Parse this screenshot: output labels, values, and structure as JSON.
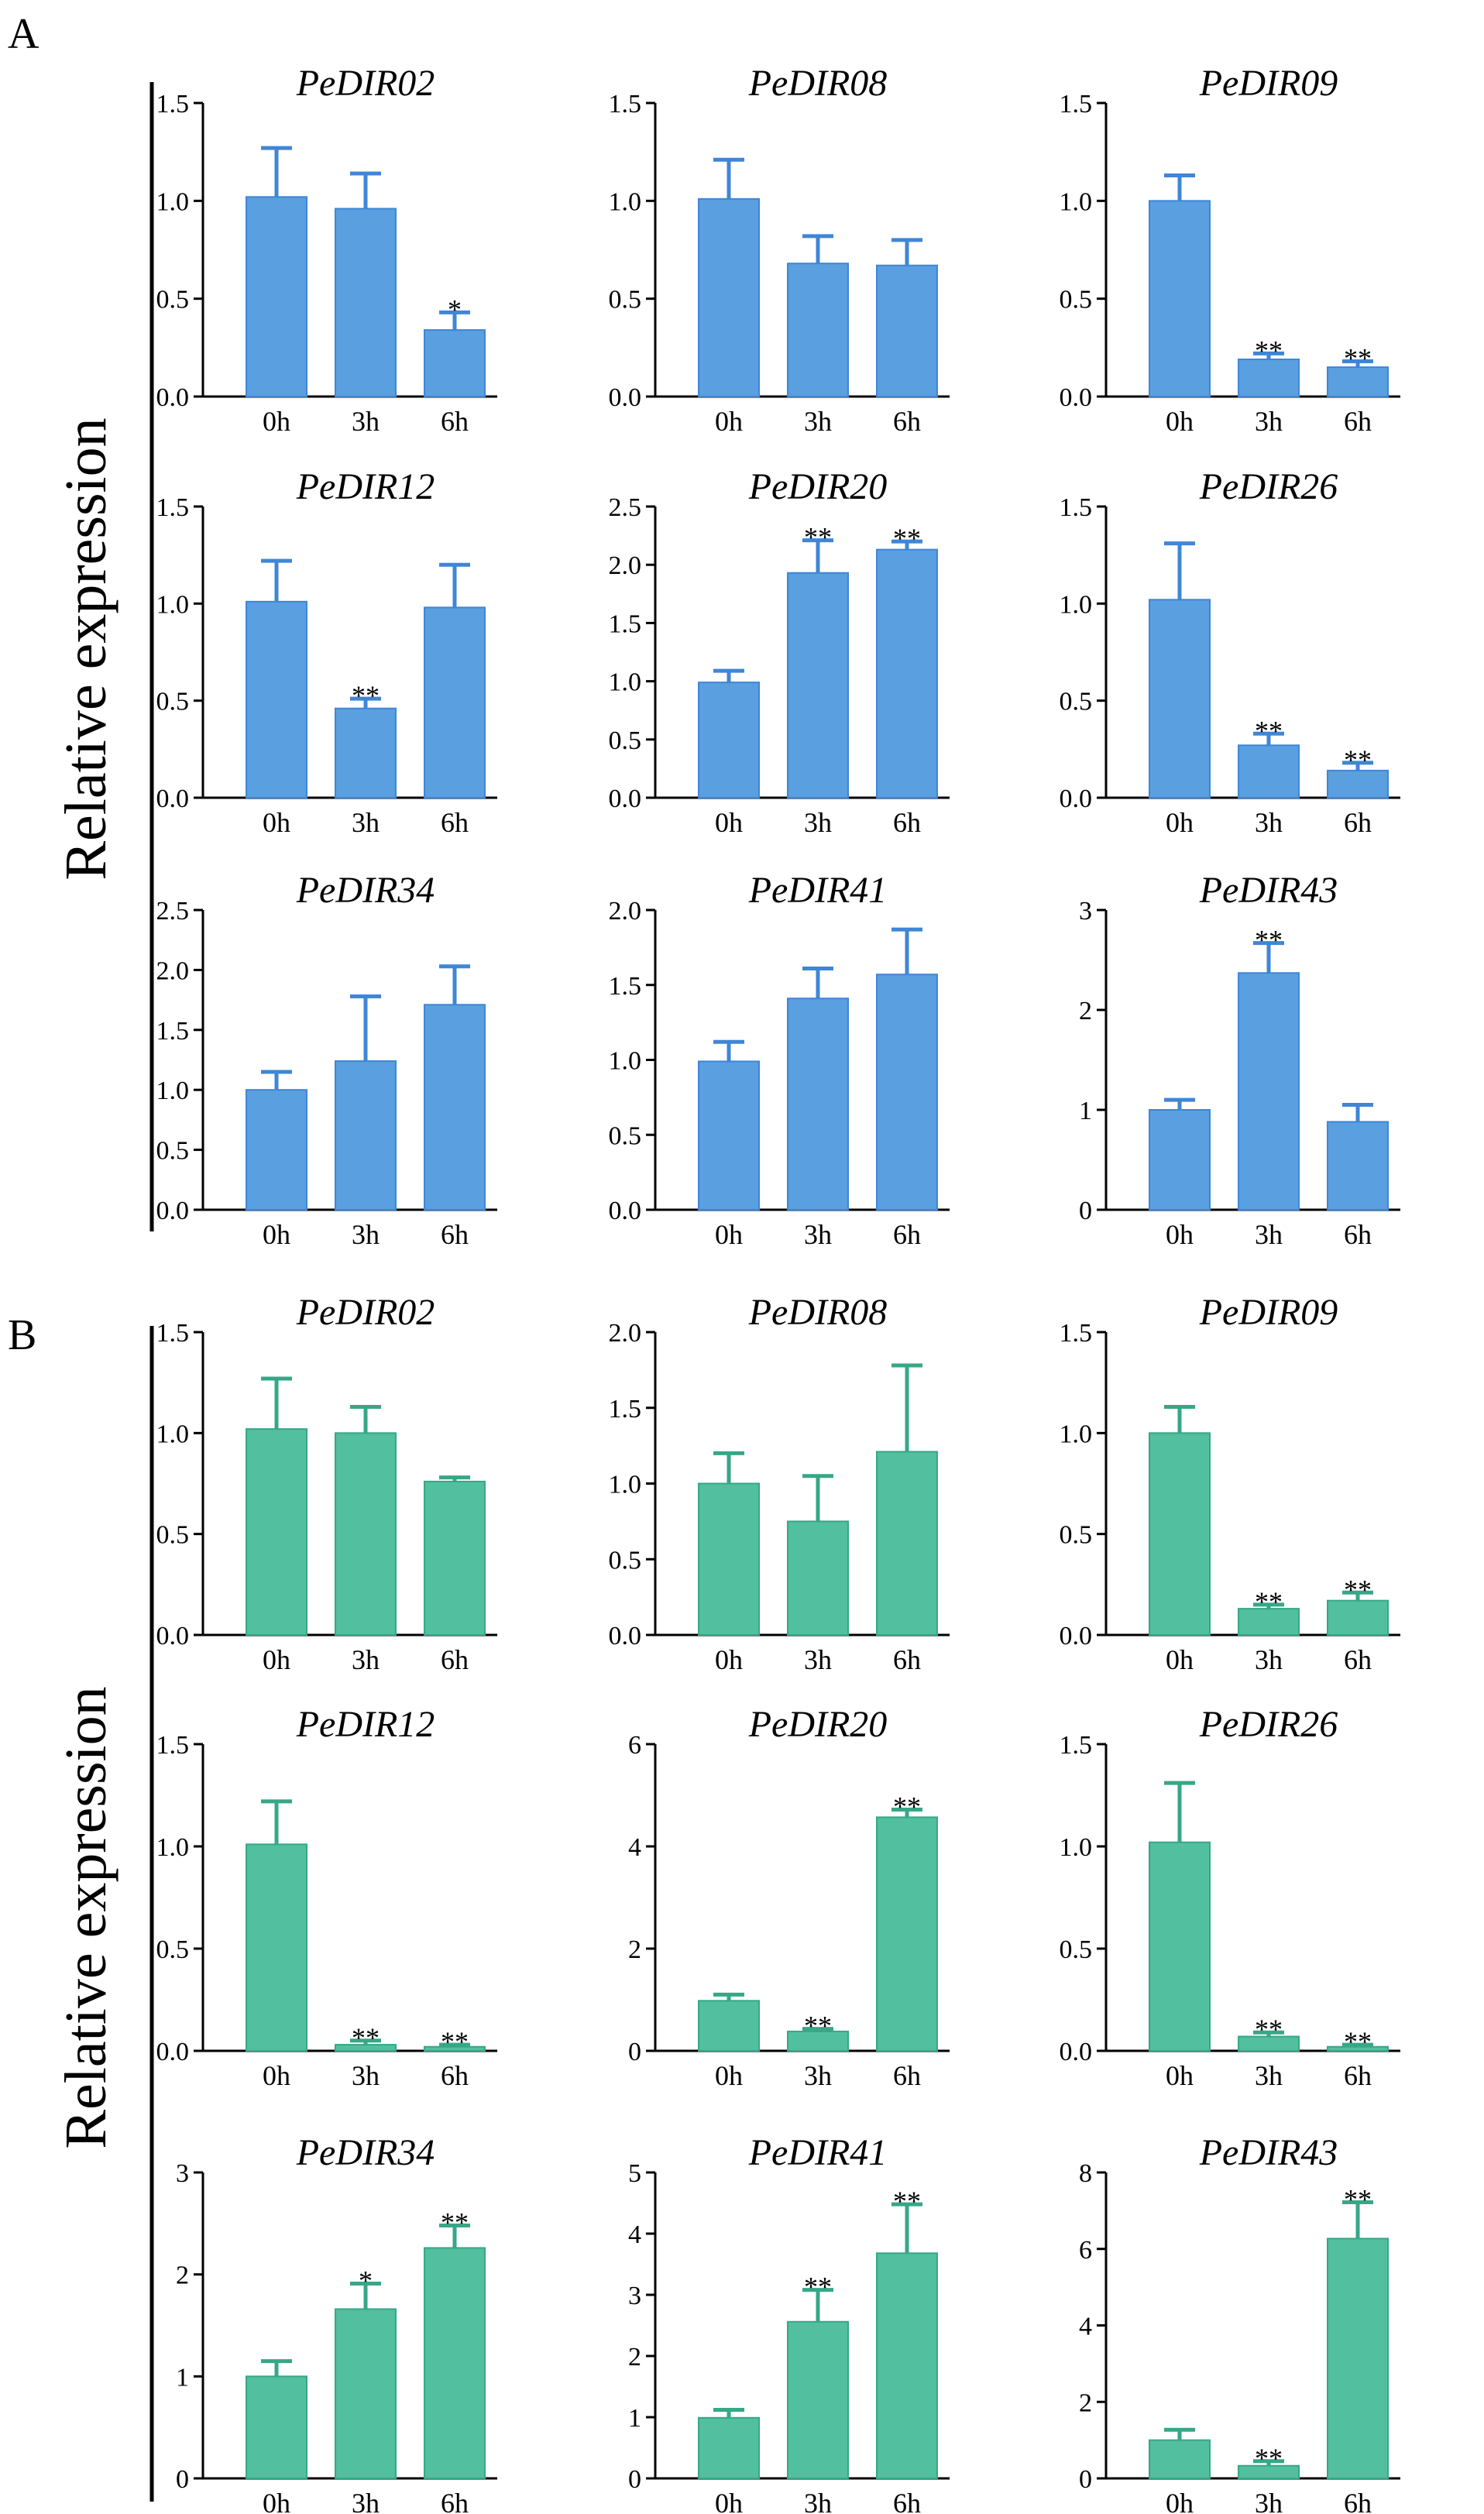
{
  "figure": {
    "panel_a_label": "A",
    "panel_b_label": "B",
    "ylabel": "Relative expression",
    "colors": {
      "panel_a": "#5a9fe0",
      "panel_a_stroke": "#3f86d6",
      "panel_b": "#52bf9f",
      "panel_b_stroke": "#36a787",
      "axis": "#000000"
    }
  },
  "chart_data": [
    {
      "panel": "A",
      "type": "bar",
      "title": "PeDIR02",
      "categories": [
        "0h",
        "3h",
        "6h"
      ],
      "values": [
        1.02,
        0.96,
        0.34
      ],
      "errors": [
        0.25,
        0.18,
        0.09
      ],
      "significance": [
        "",
        "",
        "*"
      ],
      "ylim": [
        0,
        1.5
      ],
      "yticks": [
        "0.0",
        "0.5",
        "1.0",
        "1.5"
      ],
      "ylabel": "Relative expression"
    },
    {
      "panel": "A",
      "type": "bar",
      "title": "PeDIR08",
      "categories": [
        "0h",
        "3h",
        "6h"
      ],
      "values": [
        1.01,
        0.68,
        0.67
      ],
      "errors": [
        0.2,
        0.14,
        0.13
      ],
      "significance": [
        "",
        "",
        ""
      ],
      "ylim": [
        0,
        1.5
      ],
      "yticks": [
        "0.0",
        "0.5",
        "1.0",
        "1.5"
      ],
      "ylabel": "Relative expression"
    },
    {
      "panel": "A",
      "type": "bar",
      "title": "PeDIR09",
      "categories": [
        "0h",
        "3h",
        "6h"
      ],
      "values": [
        1.0,
        0.19,
        0.15
      ],
      "errors": [
        0.13,
        0.03,
        0.03
      ],
      "significance": [
        "",
        "**",
        "**"
      ],
      "ylim": [
        0,
        1.5
      ],
      "yticks": [
        "0.0",
        "0.5",
        "1.0",
        "1.5"
      ],
      "ylabel": "Relative expression"
    },
    {
      "panel": "A",
      "type": "bar",
      "title": "PeDIR12",
      "categories": [
        "0h",
        "3h",
        "6h"
      ],
      "values": [
        1.01,
        0.46,
        0.98
      ],
      "errors": [
        0.21,
        0.05,
        0.22
      ],
      "significance": [
        "",
        "**",
        ""
      ],
      "ylim": [
        0,
        1.5
      ],
      "yticks": [
        "0.0",
        "0.5",
        "1.0",
        "1.5"
      ],
      "ylabel": "Relative expression"
    },
    {
      "panel": "A",
      "type": "bar",
      "title": "PeDIR20",
      "categories": [
        "0h",
        "3h",
        "6h"
      ],
      "values": [
        0.99,
        1.93,
        2.13
      ],
      "errors": [
        0.1,
        0.28,
        0.07
      ],
      "significance": [
        "",
        "**",
        "**"
      ],
      "ylim": [
        0,
        2.5
      ],
      "yticks": [
        "0.0",
        "0.5",
        "1.0",
        "1.5",
        "2.0",
        "2.5"
      ],
      "ylabel": "Relative expression"
    },
    {
      "panel": "A",
      "type": "bar",
      "title": "PeDIR26",
      "categories": [
        "0h",
        "3h",
        "6h"
      ],
      "values": [
        1.02,
        0.27,
        0.14
      ],
      "errors": [
        0.29,
        0.06,
        0.04
      ],
      "significance": [
        "",
        "**",
        "**"
      ],
      "ylim": [
        0,
        1.5
      ],
      "yticks": [
        "0.0",
        "0.5",
        "1.0",
        "1.5"
      ],
      "ylabel": "Relative expression"
    },
    {
      "panel": "A",
      "type": "bar",
      "title": "PeDIR34",
      "categories": [
        "0h",
        "3h",
        "6h"
      ],
      "values": [
        1.0,
        1.24,
        1.71
      ],
      "errors": [
        0.15,
        0.54,
        0.32
      ],
      "significance": [
        "",
        "",
        ""
      ],
      "ylim": [
        0,
        2.5
      ],
      "yticks": [
        "0.0",
        "0.5",
        "1.0",
        "1.5",
        "2.0",
        "2.5"
      ],
      "ylabel": "Relative expression"
    },
    {
      "panel": "A",
      "type": "bar",
      "title": "PeDIR41",
      "categories": [
        "0h",
        "3h",
        "6h"
      ],
      "values": [
        0.99,
        1.41,
        1.57
      ],
      "errors": [
        0.13,
        0.2,
        0.3
      ],
      "significance": [
        "",
        "",
        ""
      ],
      "ylim": [
        0,
        2.0
      ],
      "yticks": [
        "0.0",
        "0.5",
        "1.0",
        "1.5",
        "2.0"
      ],
      "ylabel": "Relative expression"
    },
    {
      "panel": "A",
      "type": "bar",
      "title": "PeDIR43",
      "categories": [
        "0h",
        "3h",
        "6h"
      ],
      "values": [
        1.0,
        2.37,
        0.88
      ],
      "errors": [
        0.1,
        0.3,
        0.17
      ],
      "significance": [
        "",
        "**",
        ""
      ],
      "ylim": [
        0,
        3
      ],
      "yticks": [
        "0",
        "1",
        "2",
        "3"
      ],
      "ylabel": "Relative expression"
    },
    {
      "panel": "B",
      "type": "bar",
      "title": "PeDIR02",
      "categories": [
        "0h",
        "3h",
        "6h"
      ],
      "values": [
        1.02,
        1.0,
        0.76
      ],
      "errors": [
        0.25,
        0.13,
        0.02
      ],
      "significance": [
        "",
        "",
        ""
      ],
      "ylim": [
        0,
        1.5
      ],
      "yticks": [
        "0.0",
        "0.5",
        "1.0",
        "1.5"
      ],
      "ylabel": "Relative expression"
    },
    {
      "panel": "B",
      "type": "bar",
      "title": "PeDIR08",
      "categories": [
        "0h",
        "3h",
        "6h"
      ],
      "values": [
        1.0,
        0.75,
        1.21
      ],
      "errors": [
        0.2,
        0.3,
        0.57
      ],
      "significance": [
        "",
        "",
        ""
      ],
      "ylim": [
        0,
        2.0
      ],
      "yticks": [
        "0.0",
        "0.5",
        "1.0",
        "1.5",
        "2.0"
      ],
      "ylabel": "Relative expression"
    },
    {
      "panel": "B",
      "type": "bar",
      "title": "PeDIR09",
      "categories": [
        "0h",
        "3h",
        "6h"
      ],
      "values": [
        1.0,
        0.13,
        0.17
      ],
      "errors": [
        0.13,
        0.02,
        0.04
      ],
      "significance": [
        "",
        "**",
        "**"
      ],
      "ylim": [
        0,
        1.5
      ],
      "yticks": [
        "0.0",
        "0.5",
        "1.0",
        "1.5"
      ],
      "ylabel": "Relative expression"
    },
    {
      "panel": "B",
      "type": "bar",
      "title": "PeDIR12",
      "categories": [
        "0h",
        "3h",
        "6h"
      ],
      "values": [
        1.01,
        0.03,
        0.02
      ],
      "errors": [
        0.21,
        0.02,
        0.01
      ],
      "significance": [
        "",
        "**",
        "**"
      ],
      "ylim": [
        0,
        1.5
      ],
      "yticks": [
        "0.0",
        "0.5",
        "1.0",
        "1.5"
      ],
      "ylabel": "Relative expression"
    },
    {
      "panel": "B",
      "type": "bar",
      "title": "PeDIR20",
      "categories": [
        "0h",
        "3h",
        "6h"
      ],
      "values": [
        0.98,
        0.38,
        4.57
      ],
      "errors": [
        0.12,
        0.05,
        0.15
      ],
      "significance": [
        "",
        "**",
        "**"
      ],
      "ylim": [
        0,
        6
      ],
      "yticks": [
        "0",
        "2",
        "4",
        "6"
      ],
      "ylabel": "Relative expression"
    },
    {
      "panel": "B",
      "type": "bar",
      "title": "PeDIR26",
      "categories": [
        "0h",
        "3h",
        "6h"
      ],
      "values": [
        1.02,
        0.07,
        0.02
      ],
      "errors": [
        0.29,
        0.02,
        0.01
      ],
      "significance": [
        "",
        "**",
        "**"
      ],
      "ylim": [
        0,
        1.5
      ],
      "yticks": [
        "0.0",
        "0.5",
        "1.0",
        "1.5"
      ],
      "ylabel": "Relative expression"
    },
    {
      "panel": "B",
      "type": "bar",
      "title": "PeDIR34",
      "categories": [
        "0h",
        "3h",
        "6h"
      ],
      "values": [
        1.0,
        1.66,
        2.26
      ],
      "errors": [
        0.15,
        0.25,
        0.22
      ],
      "significance": [
        "",
        "*",
        "**"
      ],
      "ylim": [
        0,
        3
      ],
      "yticks": [
        "0",
        "1",
        "2",
        "3"
      ],
      "ylabel": "Relative expression"
    },
    {
      "panel": "B",
      "type": "bar",
      "title": "PeDIR41",
      "categories": [
        "0h",
        "3h",
        "6h"
      ],
      "values": [
        0.99,
        2.56,
        3.68
      ],
      "errors": [
        0.13,
        0.52,
        0.8
      ],
      "significance": [
        "",
        "**",
        "**"
      ],
      "ylim": [
        0,
        5
      ],
      "yticks": [
        "0",
        "1",
        "2",
        "3",
        "4",
        "5"
      ],
      "ylabel": "Relative expression"
    },
    {
      "panel": "B",
      "type": "bar",
      "title": "PeDIR43",
      "categories": [
        "0h",
        "3h",
        "6h"
      ],
      "values": [
        1.0,
        0.33,
        6.27
      ],
      "errors": [
        0.27,
        0.12,
        0.95
      ],
      "significance": [
        "",
        "**",
        "**"
      ],
      "ylim": [
        0,
        8
      ],
      "yticks": [
        "0",
        "2",
        "4",
        "6",
        "8"
      ],
      "ylabel": "Relative expression"
    }
  ]
}
